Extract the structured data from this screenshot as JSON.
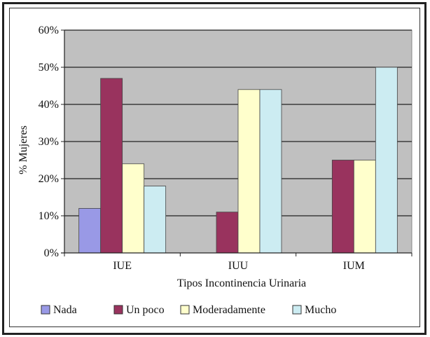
{
  "chart_data": {
    "type": "bar",
    "title": "",
    "xlabel": "Tipos Incontinencia Urinaria",
    "ylabel": "% Mujeres",
    "ylim": [
      0,
      60
    ],
    "yticks": [
      "0%",
      "10%",
      "20%",
      "30%",
      "40%",
      "50%",
      "60%"
    ],
    "grid": true,
    "legend_position": "bottom",
    "categories": [
      "IUE",
      "IUU",
      "IUM"
    ],
    "series": [
      {
        "name": "Nada",
        "color": "#9999e6",
        "values": [
          12,
          0,
          0
        ]
      },
      {
        "name": "Un poco",
        "color": "#99335e",
        "values": [
          47,
          11,
          25
        ]
      },
      {
        "name": "Moderadamente",
        "color": "#ffffcc",
        "values": [
          24,
          44,
          25
        ]
      },
      {
        "name": "Mucho",
        "color": "#ccecf2",
        "values": [
          18,
          44,
          50
        ]
      }
    ],
    "plot_background": "#c0c0c0"
  }
}
